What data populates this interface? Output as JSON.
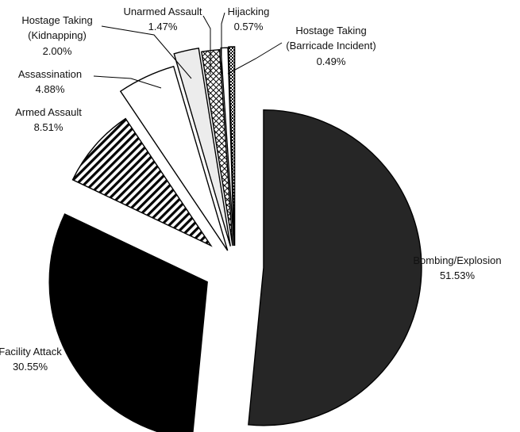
{
  "chart_data": {
    "type": "pie",
    "exploded": true,
    "slices": [
      {
        "label": "Bombing/Explosion",
        "value": 51.53,
        "value_label": "51.53%",
        "pattern": "solid-dark"
      },
      {
        "label": "Facility Attack",
        "value": 30.55,
        "value_label": "30.55%",
        "pattern": "solid-black"
      },
      {
        "label": "Armed Assault",
        "value": 8.51,
        "value_label": "8.51%",
        "pattern": "diagonal-stripes"
      },
      {
        "label": "Assassination",
        "value": 4.88,
        "value_label": "4.88%",
        "pattern": "white"
      },
      {
        "label": "Hostage Taking (Kidnapping)",
        "value": 2.0,
        "value_label": "2.00%",
        "pattern": "light-grey"
      },
      {
        "label": "Unarmed Assault",
        "value": 1.47,
        "value_label": "1.47%",
        "pattern": "crosshatch"
      },
      {
        "label": "Hijacking",
        "value": 0.57,
        "value_label": "0.57%",
        "pattern": "white"
      },
      {
        "label": "Hostage Taking (Barricade Incident)",
        "value": 0.49,
        "value_label": "0.49%",
        "pattern": "checker"
      }
    ],
    "colors": {
      "solid-dark": "#262626",
      "solid-black": "#000000",
      "light-grey": "#ececec",
      "white": "#ffffff",
      "edge": "#000000"
    }
  }
}
